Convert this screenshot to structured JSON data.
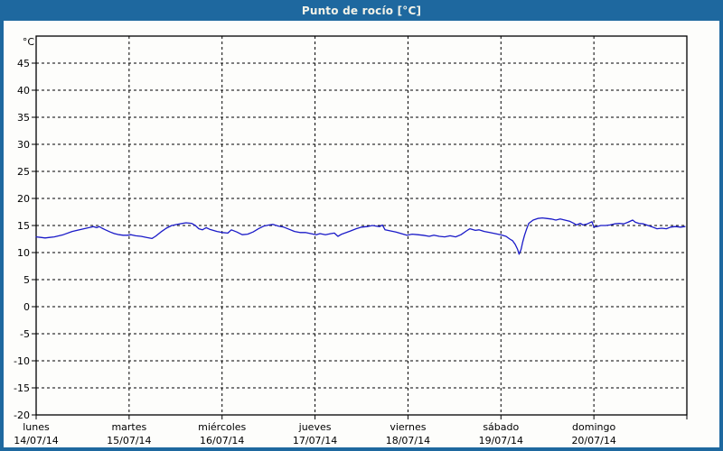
{
  "window": {
    "title": "Punto de rocío [°C]"
  },
  "colors": {
    "titlebar": "#1e689f",
    "titlebar_text": "#f3f3e9",
    "window_border": "#1e689f",
    "panel_bg": "#fdfdfb",
    "axis": "#000000",
    "grid": "#000000",
    "line": "#1a1ac8"
  },
  "chart_data": {
    "type": "line",
    "title": "Punto de rocío [°C]",
    "y_unit_label": "°C",
    "ylim": [
      -20,
      50
    ],
    "y_tick_labels": [
      45,
      40,
      35,
      30,
      25,
      20,
      15,
      10,
      5,
      0,
      -5,
      -10,
      -15,
      -20
    ],
    "grid": "dashed",
    "x_hours_total": 168,
    "x_days": [
      {
        "name": "lunes",
        "date": "14/07/14"
      },
      {
        "name": "martes",
        "date": "15/07/14"
      },
      {
        "name": "miércoles",
        "date": "16/07/14"
      },
      {
        "name": "jueves",
        "date": "17/07/14"
      },
      {
        "name": "viernes",
        "date": "18/07/14"
      },
      {
        "name": "sábado",
        "date": "19/07/14"
      },
      {
        "name": "domingo",
        "date": "20/07/14"
      }
    ],
    "series": [
      {
        "name": "Punto de rocío",
        "color": "#1a1ac8",
        "points": [
          [
            0,
            12.9
          ],
          [
            1.2,
            12.8
          ],
          [
            2.3,
            12.7
          ],
          [
            3.5,
            12.8
          ],
          [
            4.7,
            12.9
          ],
          [
            7,
            13.3
          ],
          [
            9.3,
            13.9
          ],
          [
            11.7,
            14.3
          ],
          [
            13.6,
            14.6
          ],
          [
            14.8,
            14.8
          ],
          [
            15.6,
            14.6
          ],
          [
            16.3,
            14.8
          ],
          [
            17,
            14.5
          ],
          [
            17.9,
            14.2
          ],
          [
            19.1,
            13.8
          ],
          [
            20.2,
            13.5
          ],
          [
            21.4,
            13.3
          ],
          [
            22.5,
            13.2
          ],
          [
            23.6,
            13.2
          ],
          [
            24.5,
            13.3
          ],
          [
            25.7,
            13.1
          ],
          [
            27.1,
            13.0
          ],
          [
            28.5,
            12.8
          ],
          [
            29.9,
            12.6
          ],
          [
            30.8,
            13.0
          ],
          [
            32.2,
            13.8
          ],
          [
            33.6,
            14.5
          ],
          [
            35,
            15.0
          ],
          [
            36.4,
            15.2
          ],
          [
            37.8,
            15.4
          ],
          [
            38.7,
            15.5
          ],
          [
            40.1,
            15.4
          ],
          [
            41.1,
            15.0
          ],
          [
            42,
            14.4
          ],
          [
            42.9,
            14.2
          ],
          [
            43.9,
            14.6
          ],
          [
            44.8,
            14.3
          ],
          [
            45.7,
            14.1
          ],
          [
            46.7,
            13.9
          ],
          [
            48.1,
            13.7
          ],
          [
            49.5,
            13.6
          ],
          [
            50.4,
            14.2
          ],
          [
            51.8,
            13.8
          ],
          [
            53.2,
            13.3
          ],
          [
            54.6,
            13.4
          ],
          [
            56,
            13.8
          ],
          [
            57.4,
            14.4
          ],
          [
            58.8,
            14.9
          ],
          [
            60.2,
            15.1
          ],
          [
            61.1,
            15.2
          ],
          [
            62.5,
            14.9
          ],
          [
            63.9,
            14.7
          ],
          [
            65.3,
            14.3
          ],
          [
            66.7,
            13.9
          ],
          [
            68.1,
            13.7
          ],
          [
            69.5,
            13.7
          ],
          [
            70.9,
            13.5
          ],
          [
            72.3,
            13.3
          ],
          [
            73.3,
            13.5
          ],
          [
            74.7,
            13.3
          ],
          [
            76.1,
            13.5
          ],
          [
            77,
            13.6
          ],
          [
            77.9,
            13.0
          ],
          [
            78.9,
            13.4
          ],
          [
            81.2,
            14.0
          ],
          [
            82.6,
            14.4
          ],
          [
            84,
            14.7
          ],
          [
            85.4,
            14.8
          ],
          [
            86.8,
            15.0
          ],
          [
            87.7,
            14.9
          ],
          [
            88.7,
            14.8
          ],
          [
            89.4,
            15.1
          ],
          [
            90.1,
            14.2
          ],
          [
            91.5,
            14.0
          ],
          [
            92.9,
            13.8
          ],
          [
            94.3,
            13.5
          ],
          [
            95.7,
            13.2
          ],
          [
            97.1,
            13.4
          ],
          [
            98.5,
            13.3
          ],
          [
            99.9,
            13.2
          ],
          [
            101.5,
            13.0
          ],
          [
            102.7,
            13.2
          ],
          [
            104.1,
            13.0
          ],
          [
            105.5,
            12.9
          ],
          [
            106.9,
            13.1
          ],
          [
            108.3,
            12.9
          ],
          [
            109.7,
            13.3
          ],
          [
            111.1,
            14.0
          ],
          [
            112,
            14.4
          ],
          [
            113.4,
            14.1
          ],
          [
            114.3,
            14.2
          ],
          [
            115.7,
            13.9
          ],
          [
            117.1,
            13.7
          ],
          [
            118.5,
            13.5
          ],
          [
            119.9,
            13.3
          ],
          [
            121.3,
            13.0
          ],
          [
            122.3,
            12.5
          ],
          [
            123,
            12.2
          ],
          [
            123.7,
            11.5
          ],
          [
            124.3,
            10.6
          ],
          [
            124.7,
            9.7
          ],
          [
            125.2,
            10.6
          ],
          [
            125.6,
            11.9
          ],
          [
            126.1,
            13.2
          ],
          [
            126.6,
            14.3
          ],
          [
            127.2,
            15.4
          ],
          [
            128.3,
            16.0
          ],
          [
            129.5,
            16.3
          ],
          [
            130.7,
            16.4
          ],
          [
            131.8,
            16.3
          ],
          [
            133,
            16.2
          ],
          [
            134.2,
            16.0
          ],
          [
            135.3,
            16.2
          ],
          [
            136.5,
            16.0
          ],
          [
            137.7,
            15.8
          ],
          [
            138.8,
            15.4
          ],
          [
            139.5,
            15.1
          ],
          [
            140.5,
            15.4
          ],
          [
            141.2,
            15.1
          ],
          [
            142.3,
            15.3
          ],
          [
            143.5,
            15.7
          ],
          [
            144,
            14.7
          ],
          [
            144.7,
            14.8
          ],
          [
            145.8,
            15.0
          ],
          [
            147,
            15.0
          ],
          [
            148.2,
            15.1
          ],
          [
            149.3,
            15.3
          ],
          [
            150.5,
            15.4
          ],
          [
            151.7,
            15.3
          ],
          [
            152.8,
            15.6
          ],
          [
            154,
            16.0
          ],
          [
            154.7,
            15.6
          ],
          [
            155.6,
            15.4
          ],
          [
            156.8,
            15.3
          ],
          [
            158,
            15.0
          ],
          [
            159.2,
            14.7
          ],
          [
            160.3,
            14.4
          ],
          [
            161.5,
            14.5
          ],
          [
            162.7,
            14.4
          ],
          [
            163.8,
            14.7
          ],
          [
            165,
            14.8
          ],
          [
            166.4,
            14.7
          ],
          [
            167.5,
            14.8
          ]
        ]
      }
    ]
  }
}
